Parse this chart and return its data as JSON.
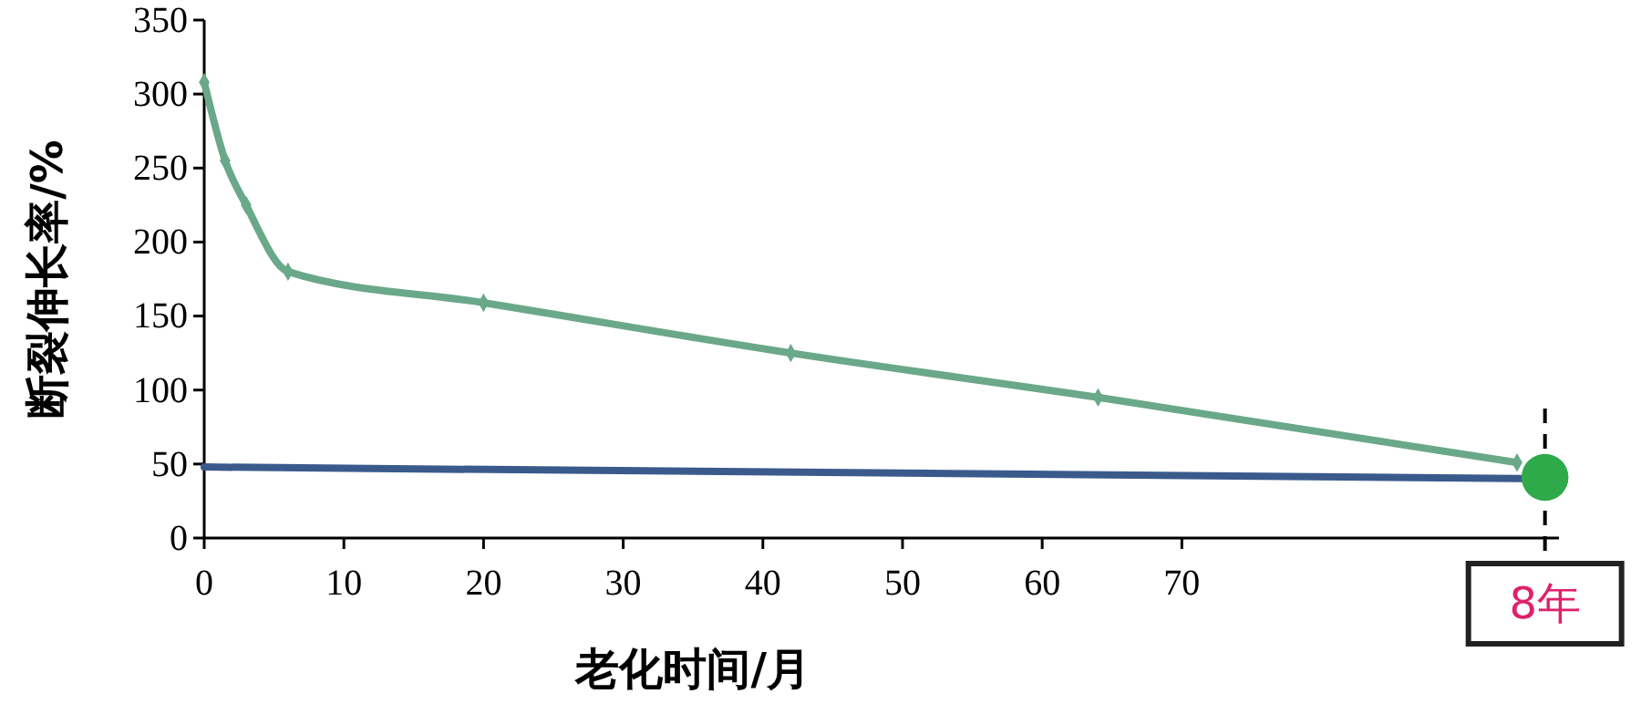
{
  "chart_data": {
    "type": "line",
    "xlabel": "老化时间/月",
    "ylabel": "断裂伸长率/%",
    "xlim": [
      0,
      97
    ],
    "xticks": [
      0,
      10,
      20,
      30,
      40,
      50,
      60,
      70
    ],
    "ylim": [
      0,
      350
    ],
    "yticks": [
      0,
      50,
      100,
      150,
      200,
      250,
      300,
      350
    ],
    "grid": false,
    "series": [
      {
        "color": "#6aa88a",
        "marker": "diamond",
        "x": [
          0,
          1.5,
          3,
          6,
          20,
          42,
          64,
          94
        ],
        "values": [
          308,
          255,
          225,
          180,
          159,
          125,
          95,
          51
        ]
      },
      {
        "color": "#3b5a8c",
        "marker": "none",
        "x": [
          0,
          96
        ],
        "values": [
          48,
          40
        ]
      },
      {
        "type": "scatter",
        "color": "#2eaa4a",
        "marker": "circle",
        "x": [
          96
        ],
        "values": [
          41
        ]
      }
    ],
    "ref_lines": [
      {
        "axis": "x",
        "value": 96,
        "label": "8年",
        "line_style": "dashed",
        "color": "#000000"
      }
    ]
  }
}
